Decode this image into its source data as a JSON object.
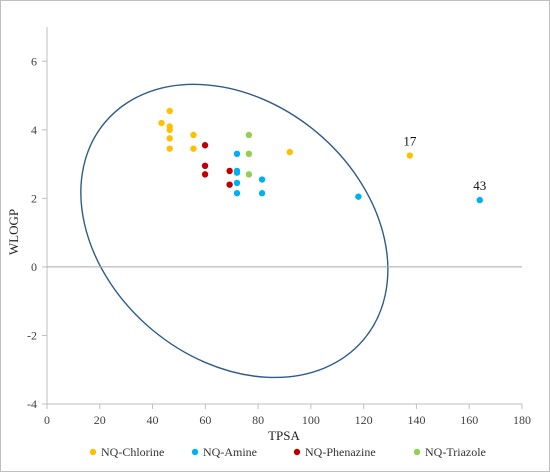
{
  "chart_data": {
    "type": "scatter",
    "title": "",
    "xlabel": "TPSA",
    "ylabel": "WLOGP",
    "xlim": [
      0,
      180
    ],
    "ylim": [
      -4,
      7
    ],
    "xticks": [
      0,
      20,
      40,
      60,
      80,
      100,
      120,
      140,
      160,
      180
    ],
    "yticks": [
      -4,
      -2,
      0,
      2,
      4,
      6
    ],
    "grid": false,
    "zero_line": true,
    "legend_position": "bottom",
    "series": [
      {
        "name": "NQ-Chlorine",
        "color": "#FFC000",
        "points": [
          [
            43.4,
            4.2
          ],
          [
            46.5,
            4.55
          ],
          [
            46.5,
            4.1
          ],
          [
            46.5,
            4.0
          ],
          [
            46.5,
            3.75
          ],
          [
            46.5,
            3.45
          ],
          [
            55.5,
            3.85
          ],
          [
            55.5,
            3.45
          ],
          [
            92.0,
            3.35
          ],
          [
            137.5,
            3.25
          ]
        ]
      },
      {
        "name": "NQ-Amine",
        "color": "#00B0F0",
        "points": [
          [
            72.0,
            3.3
          ],
          [
            72.0,
            2.8
          ],
          [
            72.0,
            2.75
          ],
          [
            72.0,
            2.45
          ],
          [
            72.0,
            2.15
          ],
          [
            81.5,
            2.55
          ],
          [
            81.5,
            2.15
          ],
          [
            118.0,
            2.05
          ],
          [
            164.0,
            1.95
          ]
        ]
      },
      {
        "name": "NQ-Phenazine",
        "color": "#C00000",
        "points": [
          [
            59.9,
            3.55
          ],
          [
            59.9,
            2.95
          ],
          [
            59.9,
            2.7
          ],
          [
            69.2,
            2.8
          ],
          [
            69.2,
            2.4
          ]
        ]
      },
      {
        "name": "NQ-Triazole",
        "color": "#92D050",
        "points": [
          [
            76.5,
            3.85
          ],
          [
            76.5,
            3.3
          ],
          [
            76.5,
            2.7
          ]
        ]
      }
    ],
    "annotations": [
      {
        "text": "17",
        "x": 137.5,
        "y": 3.25
      },
      {
        "text": "43",
        "x": 164.0,
        "y": 1.95
      }
    ],
    "ellipse": {
      "center": [
        71,
        1.05
      ],
      "rx_data": 64,
      "ry_data": 3.75,
      "rotation_deg": 40,
      "color": "#2E5C8A"
    }
  }
}
